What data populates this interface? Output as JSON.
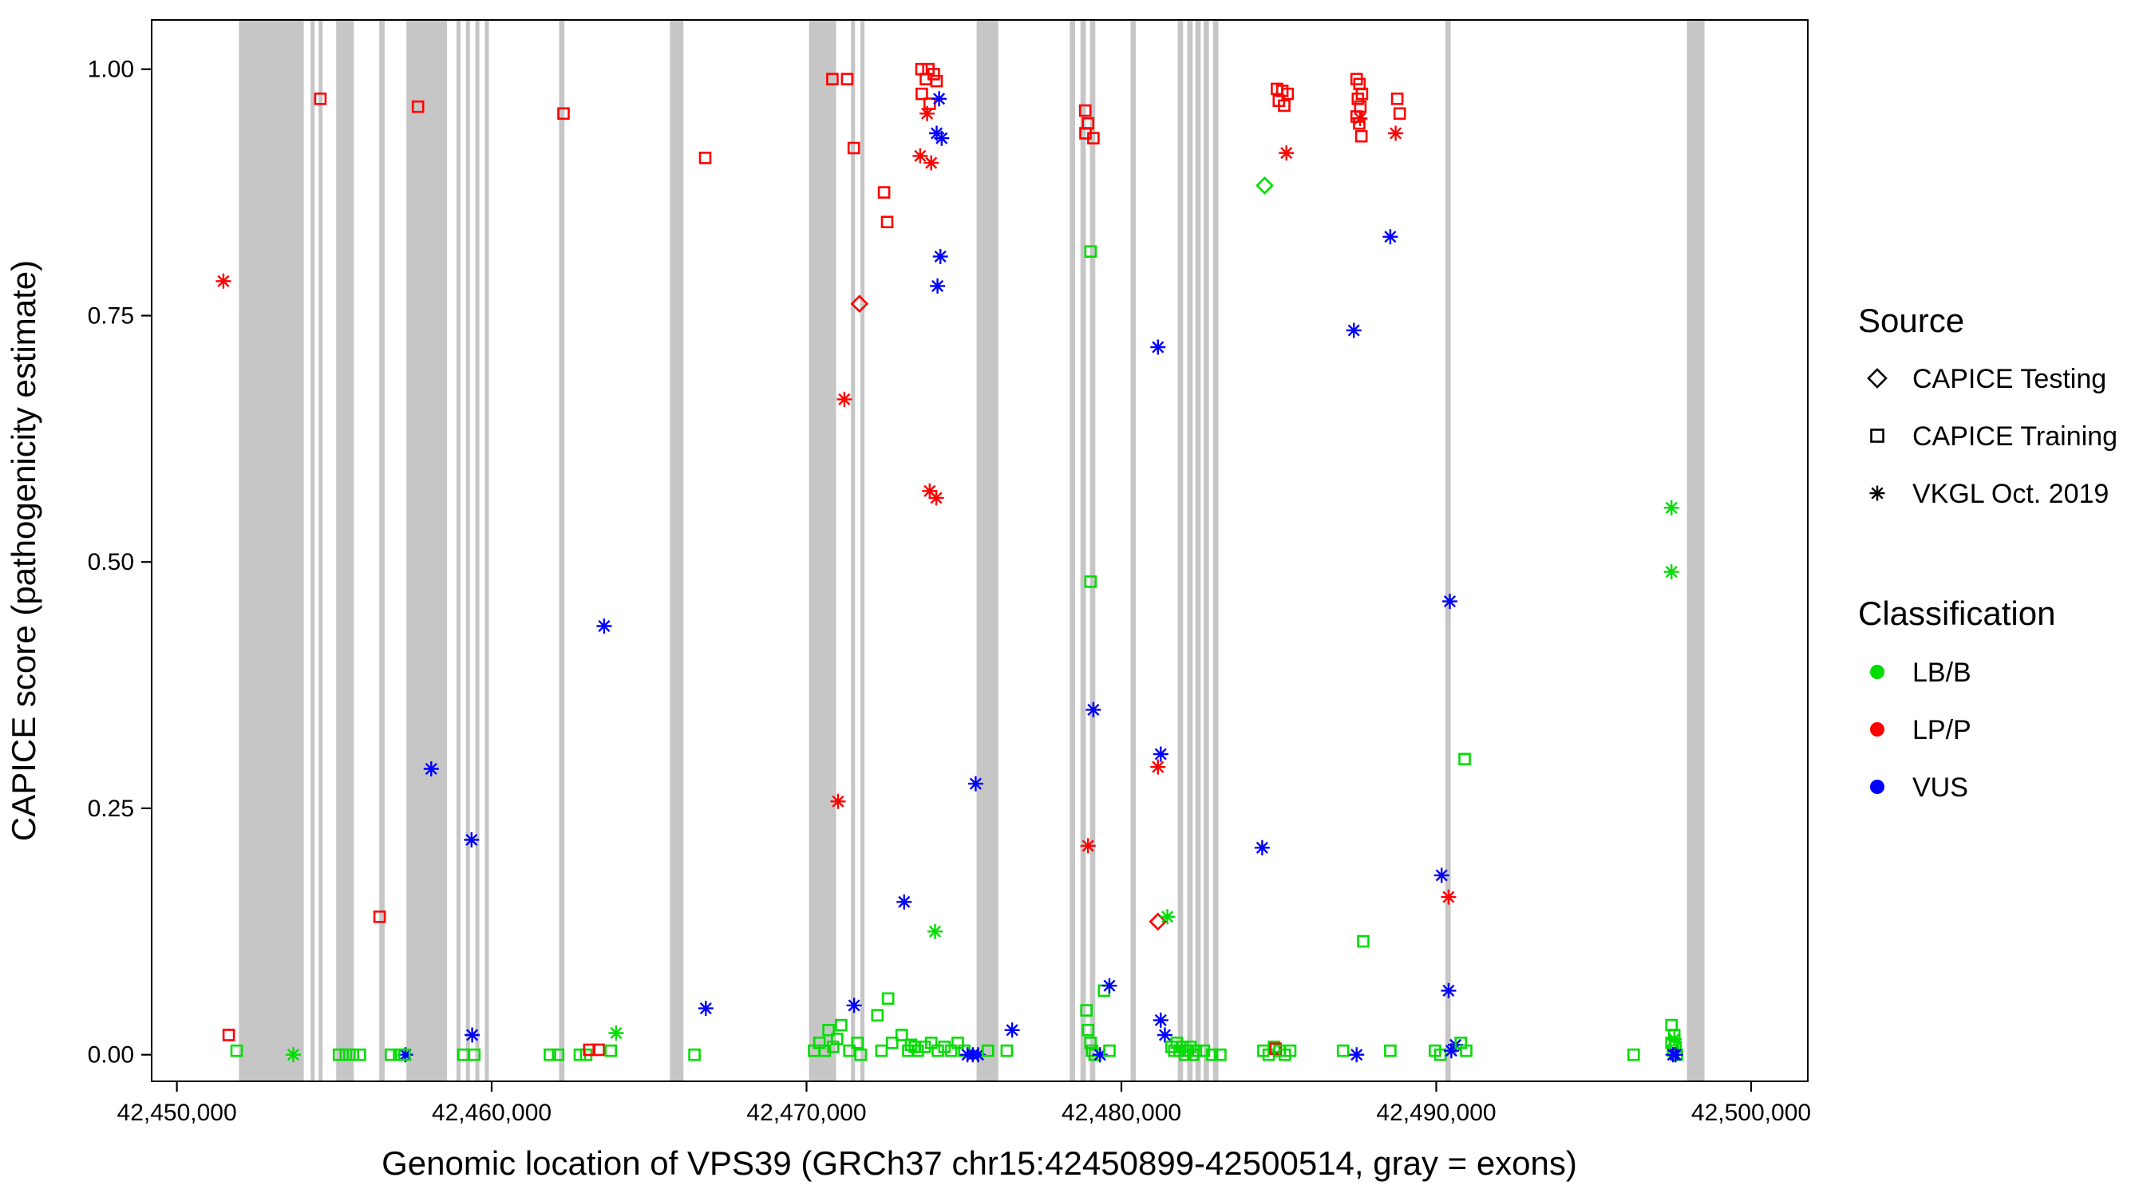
{
  "chart_data": {
    "type": "scatter",
    "title": "",
    "xlabel": "Genomic location of VPS39 (GRCh37 chr15:42450899-42500514, gray = exons)",
    "ylabel": "CAPICE score (pathogenicity estimate)",
    "x_domain": [
      42449200,
      42501800
    ],
    "y_domain": [
      -0.027,
      1.05
    ],
    "x_ticks": [
      {
        "value": 42450000,
        "label": "42,450,000"
      },
      {
        "value": 42460000,
        "label": "42,460,000"
      },
      {
        "value": 42470000,
        "label": "42,470,000"
      },
      {
        "value": 42480000,
        "label": "42,480,000"
      },
      {
        "value": 42490000,
        "label": "42,490,000"
      },
      {
        "value": 42500000,
        "label": "42,500,000"
      }
    ],
    "y_ticks": [
      {
        "value": 0.0,
        "label": "0.00"
      },
      {
        "value": 0.25,
        "label": "0.25"
      },
      {
        "value": 0.5,
        "label": "0.50"
      },
      {
        "value": 0.75,
        "label": "0.75"
      },
      {
        "value": 1.0,
        "label": "1.00"
      }
    ],
    "grid": false,
    "legend_position": "right",
    "exon_color": "#C6C6C6",
    "panel_border_color": "#000000",
    "exons": [
      [
        42451970,
        42454030
      ],
      [
        42454250,
        42454380
      ],
      [
        42454500,
        42454630
      ],
      [
        42455060,
        42455620
      ],
      [
        42456430,
        42456600
      ],
      [
        42457290,
        42458580
      ],
      [
        42458880,
        42459010
      ],
      [
        42459180,
        42459310
      ],
      [
        42459480,
        42459610
      ],
      [
        42459780,
        42459910
      ],
      [
        42462140,
        42462310
      ],
      [
        42465660,
        42466090
      ],
      [
        42470080,
        42470940
      ],
      [
        42471410,
        42471540
      ],
      [
        42471710,
        42471840
      ],
      [
        42475400,
        42476090
      ],
      [
        42478360,
        42478530
      ],
      [
        42478700,
        42478870
      ],
      [
        42479000,
        42479170
      ],
      [
        42480290,
        42480460
      ],
      [
        42481790,
        42481960
      ],
      [
        42482090,
        42482260
      ],
      [
        42482350,
        42482520
      ],
      [
        42482610,
        42482780
      ],
      [
        42482910,
        42483080
      ],
      [
        42490290,
        42490460
      ],
      [
        42497960,
        42498520
      ]
    ],
    "shapes": {
      "sq": "CAPICE Training",
      "di": "CAPICE Testing",
      "as": "VKGL Oct. 2019"
    },
    "classes": {
      "g": {
        "label": "LB/B",
        "color": "#00DD00"
      },
      "r": {
        "label": "LP/P",
        "color": "#FF0000"
      },
      "b": {
        "label": "VUS",
        "color": "#0000FF"
      }
    },
    "points": [
      [
        42451480,
        0.785,
        "as",
        "r"
      ],
      [
        42451650,
        0.02,
        "sq",
        "r"
      ],
      [
        42451900,
        0.004,
        "sq",
        "g"
      ],
      [
        42453700,
        0.0,
        "as",
        "g"
      ],
      [
        42454560,
        0.97,
        "sq",
        "r"
      ],
      [
        42455150,
        0.0,
        "sq",
        "g"
      ],
      [
        42455370,
        0.0,
        "sq",
        "g"
      ],
      [
        42455590,
        0.0,
        "sq",
        "g"
      ],
      [
        42455810,
        0.0,
        "sq",
        "g"
      ],
      [
        42456440,
        0.14,
        "sq",
        "r"
      ],
      [
        42456800,
        0.0,
        "sq",
        "g"
      ],
      [
        42457060,
        0.0,
        "sq",
        "g"
      ],
      [
        42457260,
        0.0,
        "as",
        "b"
      ],
      [
        42457230,
        0.0,
        "sq",
        "g"
      ],
      [
        42457660,
        0.962,
        "sq",
        "r"
      ],
      [
        42458080,
        0.29,
        "as",
        "b"
      ],
      [
        42459100,
        0.0,
        "sq",
        "g"
      ],
      [
        42459360,
        0.218,
        "as",
        "b"
      ],
      [
        42459380,
        0.02,
        "as",
        "b"
      ],
      [
        42459450,
        0.0,
        "sq",
        "g"
      ],
      [
        42461850,
        0.0,
        "sq",
        "g"
      ],
      [
        42462110,
        0.0,
        "sq",
        "g"
      ],
      [
        42462280,
        0.955,
        "sq",
        "r"
      ],
      [
        42462800,
        0.0,
        "sq",
        "g"
      ],
      [
        42463000,
        0.0,
        "sq",
        "g"
      ],
      [
        42463100,
        0.005,
        "sq",
        "r"
      ],
      [
        42463400,
        0.005,
        "sq",
        "r"
      ],
      [
        42463570,
        0.435,
        "as",
        "b"
      ],
      [
        42463780,
        0.004,
        "sq",
        "g"
      ],
      [
        42463950,
        0.022,
        "as",
        "g"
      ],
      [
        42466440,
        0.0,
        "sq",
        "g"
      ],
      [
        42466780,
        0.91,
        "sq",
        "r"
      ],
      [
        42466800,
        0.047,
        "as",
        "b"
      ],
      [
        42470240,
        0.004,
        "sq",
        "g"
      ],
      [
        42470410,
        0.012,
        "sq",
        "g"
      ],
      [
        42470580,
        0.004,
        "sq",
        "g"
      ],
      [
        42470700,
        0.025,
        "sq",
        "g"
      ],
      [
        42470820,
        0.99,
        "sq",
        "r"
      ],
      [
        42470840,
        0.008,
        "sq",
        "g"
      ],
      [
        42470970,
        0.016,
        "sq",
        "g"
      ],
      [
        42471000,
        0.257,
        "as",
        "r"
      ],
      [
        42471100,
        0.03,
        "sq",
        "g"
      ],
      [
        42471200,
        0.665,
        "as",
        "r"
      ],
      [
        42471290,
        0.99,
        "sq",
        "r"
      ],
      [
        42471360,
        0.004,
        "sq",
        "g"
      ],
      [
        42471500,
        0.92,
        "sq",
        "r"
      ],
      [
        42471510,
        0.05,
        "as",
        "b"
      ],
      [
        42471620,
        0.012,
        "sq",
        "g"
      ],
      [
        42471680,
        0.762,
        "di",
        "r"
      ],
      [
        42471720,
        0.0,
        "sq",
        "g"
      ],
      [
        42472250,
        0.04,
        "sq",
        "g"
      ],
      [
        42472380,
        0.004,
        "sq",
        "g"
      ],
      [
        42472460,
        0.875,
        "sq",
        "r"
      ],
      [
        42472560,
        0.845,
        "sq",
        "r"
      ],
      [
        42472590,
        0.057,
        "sq",
        "g"
      ],
      [
        42472720,
        0.012,
        "sq",
        "g"
      ],
      [
        42473020,
        0.02,
        "sq",
        "g"
      ],
      [
        42473100,
        0.155,
        "as",
        "b"
      ],
      [
        42473230,
        0.004,
        "sq",
        "g"
      ],
      [
        42473440,
        0.008,
        "sq",
        "g"
      ],
      [
        42473650,
        1.0,
        "sq",
        "r"
      ],
      [
        42473870,
        1.0,
        "sq",
        "r"
      ],
      [
        42474040,
        0.995,
        "sq",
        "r"
      ],
      [
        42473790,
        0.99,
        "sq",
        "r"
      ],
      [
        42474130,
        0.988,
        "sq",
        "r"
      ],
      [
        42473660,
        0.975,
        "sq",
        "r"
      ],
      [
        42473910,
        0.965,
        "sq",
        "r"
      ],
      [
        42474210,
        0.97,
        "as",
        "b"
      ],
      [
        42474130,
        0.935,
        "as",
        "b"
      ],
      [
        42474290,
        0.93,
        "as",
        "b"
      ],
      [
        42473830,
        0.955,
        "as",
        "r"
      ],
      [
        42473610,
        0.912,
        "as",
        "r"
      ],
      [
        42473960,
        0.905,
        "as",
        "r"
      ],
      [
        42474250,
        0.81,
        "as",
        "b"
      ],
      [
        42474160,
        0.78,
        "as",
        "b"
      ],
      [
        42473910,
        0.572,
        "as",
        "r"
      ],
      [
        42474120,
        0.565,
        "as",
        "r"
      ],
      [
        42474080,
        0.125,
        "as",
        "g"
      ],
      [
        42473320,
        0.01,
        "sq",
        "g"
      ],
      [
        42473530,
        0.004,
        "sq",
        "g"
      ],
      [
        42473750,
        0.008,
        "sq",
        "g"
      ],
      [
        42473960,
        0.012,
        "sq",
        "g"
      ],
      [
        42474170,
        0.004,
        "sq",
        "g"
      ],
      [
        42474380,
        0.008,
        "sq",
        "g"
      ],
      [
        42474590,
        0.004,
        "sq",
        "g"
      ],
      [
        42474800,
        0.012,
        "sq",
        "g"
      ],
      [
        42475010,
        0.004,
        "sq",
        "g"
      ],
      [
        42475110,
        0.0,
        "as",
        "b"
      ],
      [
        42475280,
        0.0,
        "as",
        "b"
      ],
      [
        42475450,
        0.0,
        "as",
        "b"
      ],
      [
        42475370,
        0.275,
        "as",
        "b"
      ],
      [
        42475760,
        0.004,
        "sq",
        "g"
      ],
      [
        42476360,
        0.004,
        "sq",
        "g"
      ],
      [
        42476530,
        0.025,
        "as",
        "b"
      ],
      [
        42478850,
        0.958,
        "sq",
        "r"
      ],
      [
        42478940,
        0.945,
        "sq",
        "r"
      ],
      [
        42478860,
        0.935,
        "sq",
        "r"
      ],
      [
        42479110,
        0.93,
        "sq",
        "r"
      ],
      [
        42479020,
        0.815,
        "sq",
        "g"
      ],
      [
        42479020,
        0.48,
        "sq",
        "g"
      ],
      [
        42479110,
        0.35,
        "as",
        "b"
      ],
      [
        42478940,
        0.212,
        "as",
        "r"
      ],
      [
        42479450,
        0.065,
        "sq",
        "g"
      ],
      [
        42479620,
        0.07,
        "as",
        "b"
      ],
      [
        42478890,
        0.045,
        "sq",
        "g"
      ],
      [
        42478940,
        0.025,
        "sq",
        "g"
      ],
      [
        42479020,
        0.012,
        "sq",
        "g"
      ],
      [
        42479070,
        0.004,
        "sq",
        "g"
      ],
      [
        42479150,
        0.0,
        "sq",
        "g"
      ],
      [
        42479320,
        0.0,
        "as",
        "b"
      ],
      [
        42479620,
        0.004,
        "sq",
        "g"
      ],
      [
        42481160,
        0.718,
        "as",
        "b"
      ],
      [
        42481250,
        0.305,
        "as",
        "b"
      ],
      [
        42481160,
        0.292,
        "as",
        "r"
      ],
      [
        42481160,
        0.135,
        "di",
        "r"
      ],
      [
        42481460,
        0.14,
        "as",
        "g"
      ],
      [
        42481250,
        0.035,
        "as",
        "b"
      ],
      [
        42481380,
        0.02,
        "as",
        "b"
      ],
      [
        42481590,
        0.008,
        "sq",
        "g"
      ],
      [
        42481680,
        0.004,
        "sq",
        "g"
      ],
      [
        42481760,
        0.012,
        "sq",
        "g"
      ],
      [
        42481850,
        0.004,
        "sq",
        "g"
      ],
      [
        42481940,
        0.008,
        "sq",
        "g"
      ],
      [
        42482020,
        0.0,
        "sq",
        "g"
      ],
      [
        42482110,
        0.004,
        "sq",
        "g"
      ],
      [
        42482190,
        0.008,
        "sq",
        "g"
      ],
      [
        42482280,
        0.0,
        "sq",
        "g"
      ],
      [
        42482370,
        0.004,
        "sq",
        "g"
      ],
      [
        42482620,
        0.004,
        "sq",
        "g"
      ],
      [
        42482880,
        0.0,
        "sq",
        "g"
      ],
      [
        42483140,
        0.0,
        "sq",
        "g"
      ],
      [
        42484550,
        0.882,
        "di",
        "g"
      ],
      [
        42484940,
        0.98,
        "sq",
        "r"
      ],
      [
        42485110,
        0.978,
        "sq",
        "r"
      ],
      [
        42485280,
        0.975,
        "sq",
        "r"
      ],
      [
        42485000,
        0.968,
        "sq",
        "r"
      ],
      [
        42485170,
        0.963,
        "sq",
        "r"
      ],
      [
        42485240,
        0.915,
        "as",
        "r"
      ],
      [
        42484470,
        0.21,
        "as",
        "b"
      ],
      [
        42484510,
        0.004,
        "sq",
        "g"
      ],
      [
        42484680,
        0.0,
        "sq",
        "g"
      ],
      [
        42484850,
        0.008,
        "sq",
        "g"
      ],
      [
        42484900,
        0.006,
        "sq",
        "r"
      ],
      [
        42485020,
        0.004,
        "sq",
        "g"
      ],
      [
        42485190,
        0.0,
        "sq",
        "g"
      ],
      [
        42485360,
        0.004,
        "sq",
        "g"
      ],
      [
        42487380,
        0.735,
        "as",
        "b"
      ],
      [
        42487470,
        0.99,
        "sq",
        "r"
      ],
      [
        42487560,
        0.985,
        "sq",
        "r"
      ],
      [
        42487640,
        0.975,
        "sq",
        "r"
      ],
      [
        42487510,
        0.97,
        "sq",
        "r"
      ],
      [
        42487590,
        0.962,
        "sq",
        "r"
      ],
      [
        42487470,
        0.952,
        "sq",
        "r"
      ],
      [
        42487550,
        0.945,
        "sq",
        "r"
      ],
      [
        42487620,
        0.932,
        "sq",
        "r"
      ],
      [
        42487580,
        0.95,
        "as",
        "r"
      ],
      [
        42487680,
        0.115,
        "sq",
        "g"
      ],
      [
        42487040,
        0.004,
        "sq",
        "g"
      ],
      [
        42487470,
        0.0,
        "as",
        "b"
      ],
      [
        42488760,
        0.97,
        "sq",
        "r"
      ],
      [
        42488840,
        0.955,
        "sq",
        "r"
      ],
      [
        42488710,
        0.935,
        "as",
        "r"
      ],
      [
        42488540,
        0.83,
        "as",
        "b"
      ],
      [
        42488540,
        0.004,
        "sq",
        "g"
      ],
      [
        42490430,
        0.46,
        "as",
        "b"
      ],
      [
        42490170,
        0.182,
        "as",
        "b"
      ],
      [
        42490390,
        0.16,
        "as",
        "r"
      ],
      [
        42490390,
        0.065,
        "as",
        "b"
      ],
      [
        42489960,
        0.004,
        "sq",
        "g"
      ],
      [
        42490130,
        0.0,
        "sq",
        "g"
      ],
      [
        42490480,
        0.004,
        "as",
        "b"
      ],
      [
        42490610,
        0.01,
        "as",
        "b"
      ],
      [
        42490780,
        0.012,
        "sq",
        "g"
      ],
      [
        42490900,
        0.3,
        "sq",
        "g"
      ],
      [
        42490950,
        0.004,
        "sq",
        "g"
      ],
      [
        42496270,
        0.0,
        "sq",
        "g"
      ],
      [
        42497470,
        0.555,
        "as",
        "g"
      ],
      [
        42497470,
        0.49,
        "as",
        "g"
      ],
      [
        42497470,
        0.03,
        "sq",
        "g"
      ],
      [
        42497560,
        0.02,
        "sq",
        "g"
      ],
      [
        42497470,
        0.012,
        "sq",
        "g"
      ],
      [
        42497600,
        0.008,
        "sq",
        "g"
      ],
      [
        42497520,
        0.004,
        "sq",
        "g"
      ],
      [
        42497640,
        0.0,
        "sq",
        "g"
      ],
      [
        42497560,
        0.016,
        "as",
        "g"
      ],
      [
        42497520,
        0.0,
        "as",
        "b"
      ],
      [
        42497600,
        0.0,
        "as",
        "b"
      ]
    ]
  },
  "legend": {
    "source_title": "Source",
    "source_items": [
      {
        "shape": "diamond",
        "label": "CAPICE Testing"
      },
      {
        "shape": "square",
        "label": "CAPICE Training"
      },
      {
        "shape": "asterisk",
        "label": "VKGL Oct. 2019"
      }
    ],
    "classification_title": "Classification",
    "classification_items": [
      {
        "label": "LB/B",
        "color": "#00DD00"
      },
      {
        "label": "LP/P",
        "color": "#FF0000"
      },
      {
        "label": "VUS",
        "color": "#0000FF"
      }
    ]
  }
}
